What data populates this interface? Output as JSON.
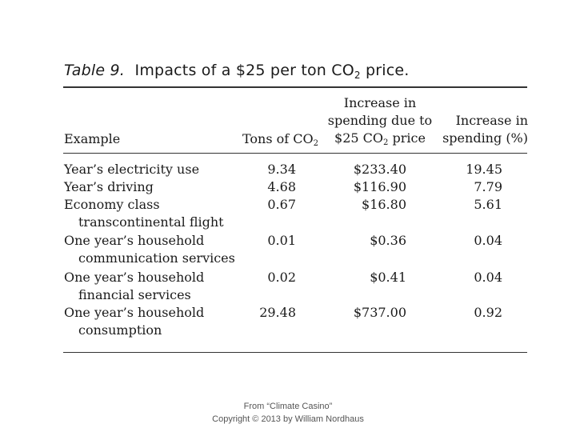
{
  "title": {
    "label": "Table 9.",
    "text_main": "Impacts of a $25 per ton CO",
    "text_sub": "2",
    "text_end": " price."
  },
  "headers": {
    "example": "Example",
    "tons_main": "Tons of CO",
    "tons_sub": "2",
    "increase_line1": "Increase in",
    "increase_line2": "spending due to",
    "increase_line3_main": "$25 CO",
    "increase_line3_sub": "2",
    "increase_line3_end": " price",
    "pct_line1": "Increase in",
    "pct_line2": "spending (%)"
  },
  "rows": [
    {
      "example": "Year’s electricity use",
      "example_cont": "",
      "tons": "9.34",
      "spending": "$233.40",
      "pct": "19.45"
    },
    {
      "example": "Year’s driving",
      "example_cont": "",
      "tons": "4.68",
      "spending": "$116.90",
      "pct": "7.79"
    },
    {
      "example": "Economy class",
      "example_cont": "transcontinental flight",
      "tons": "0.67",
      "spending": "$16.80",
      "pct": "5.61"
    },
    {
      "example": "One year’s household",
      "example_cont": "communication services",
      "tons": "0.01",
      "spending": "$0.36",
      "pct": "0.04"
    },
    {
      "example": "One year’s household",
      "example_cont": "financial services",
      "tons": "0.02",
      "spending": "$0.41",
      "pct": "0.04"
    },
    {
      "example": "One year’s household",
      "example_cont": "consumption",
      "tons": "29.48",
      "spending": "$737.00",
      "pct": "0.92"
    }
  ],
  "footer": {
    "line1": "From “Climate Casino”",
    "line2": "Copyright © 2013 by William Nordhaus"
  }
}
